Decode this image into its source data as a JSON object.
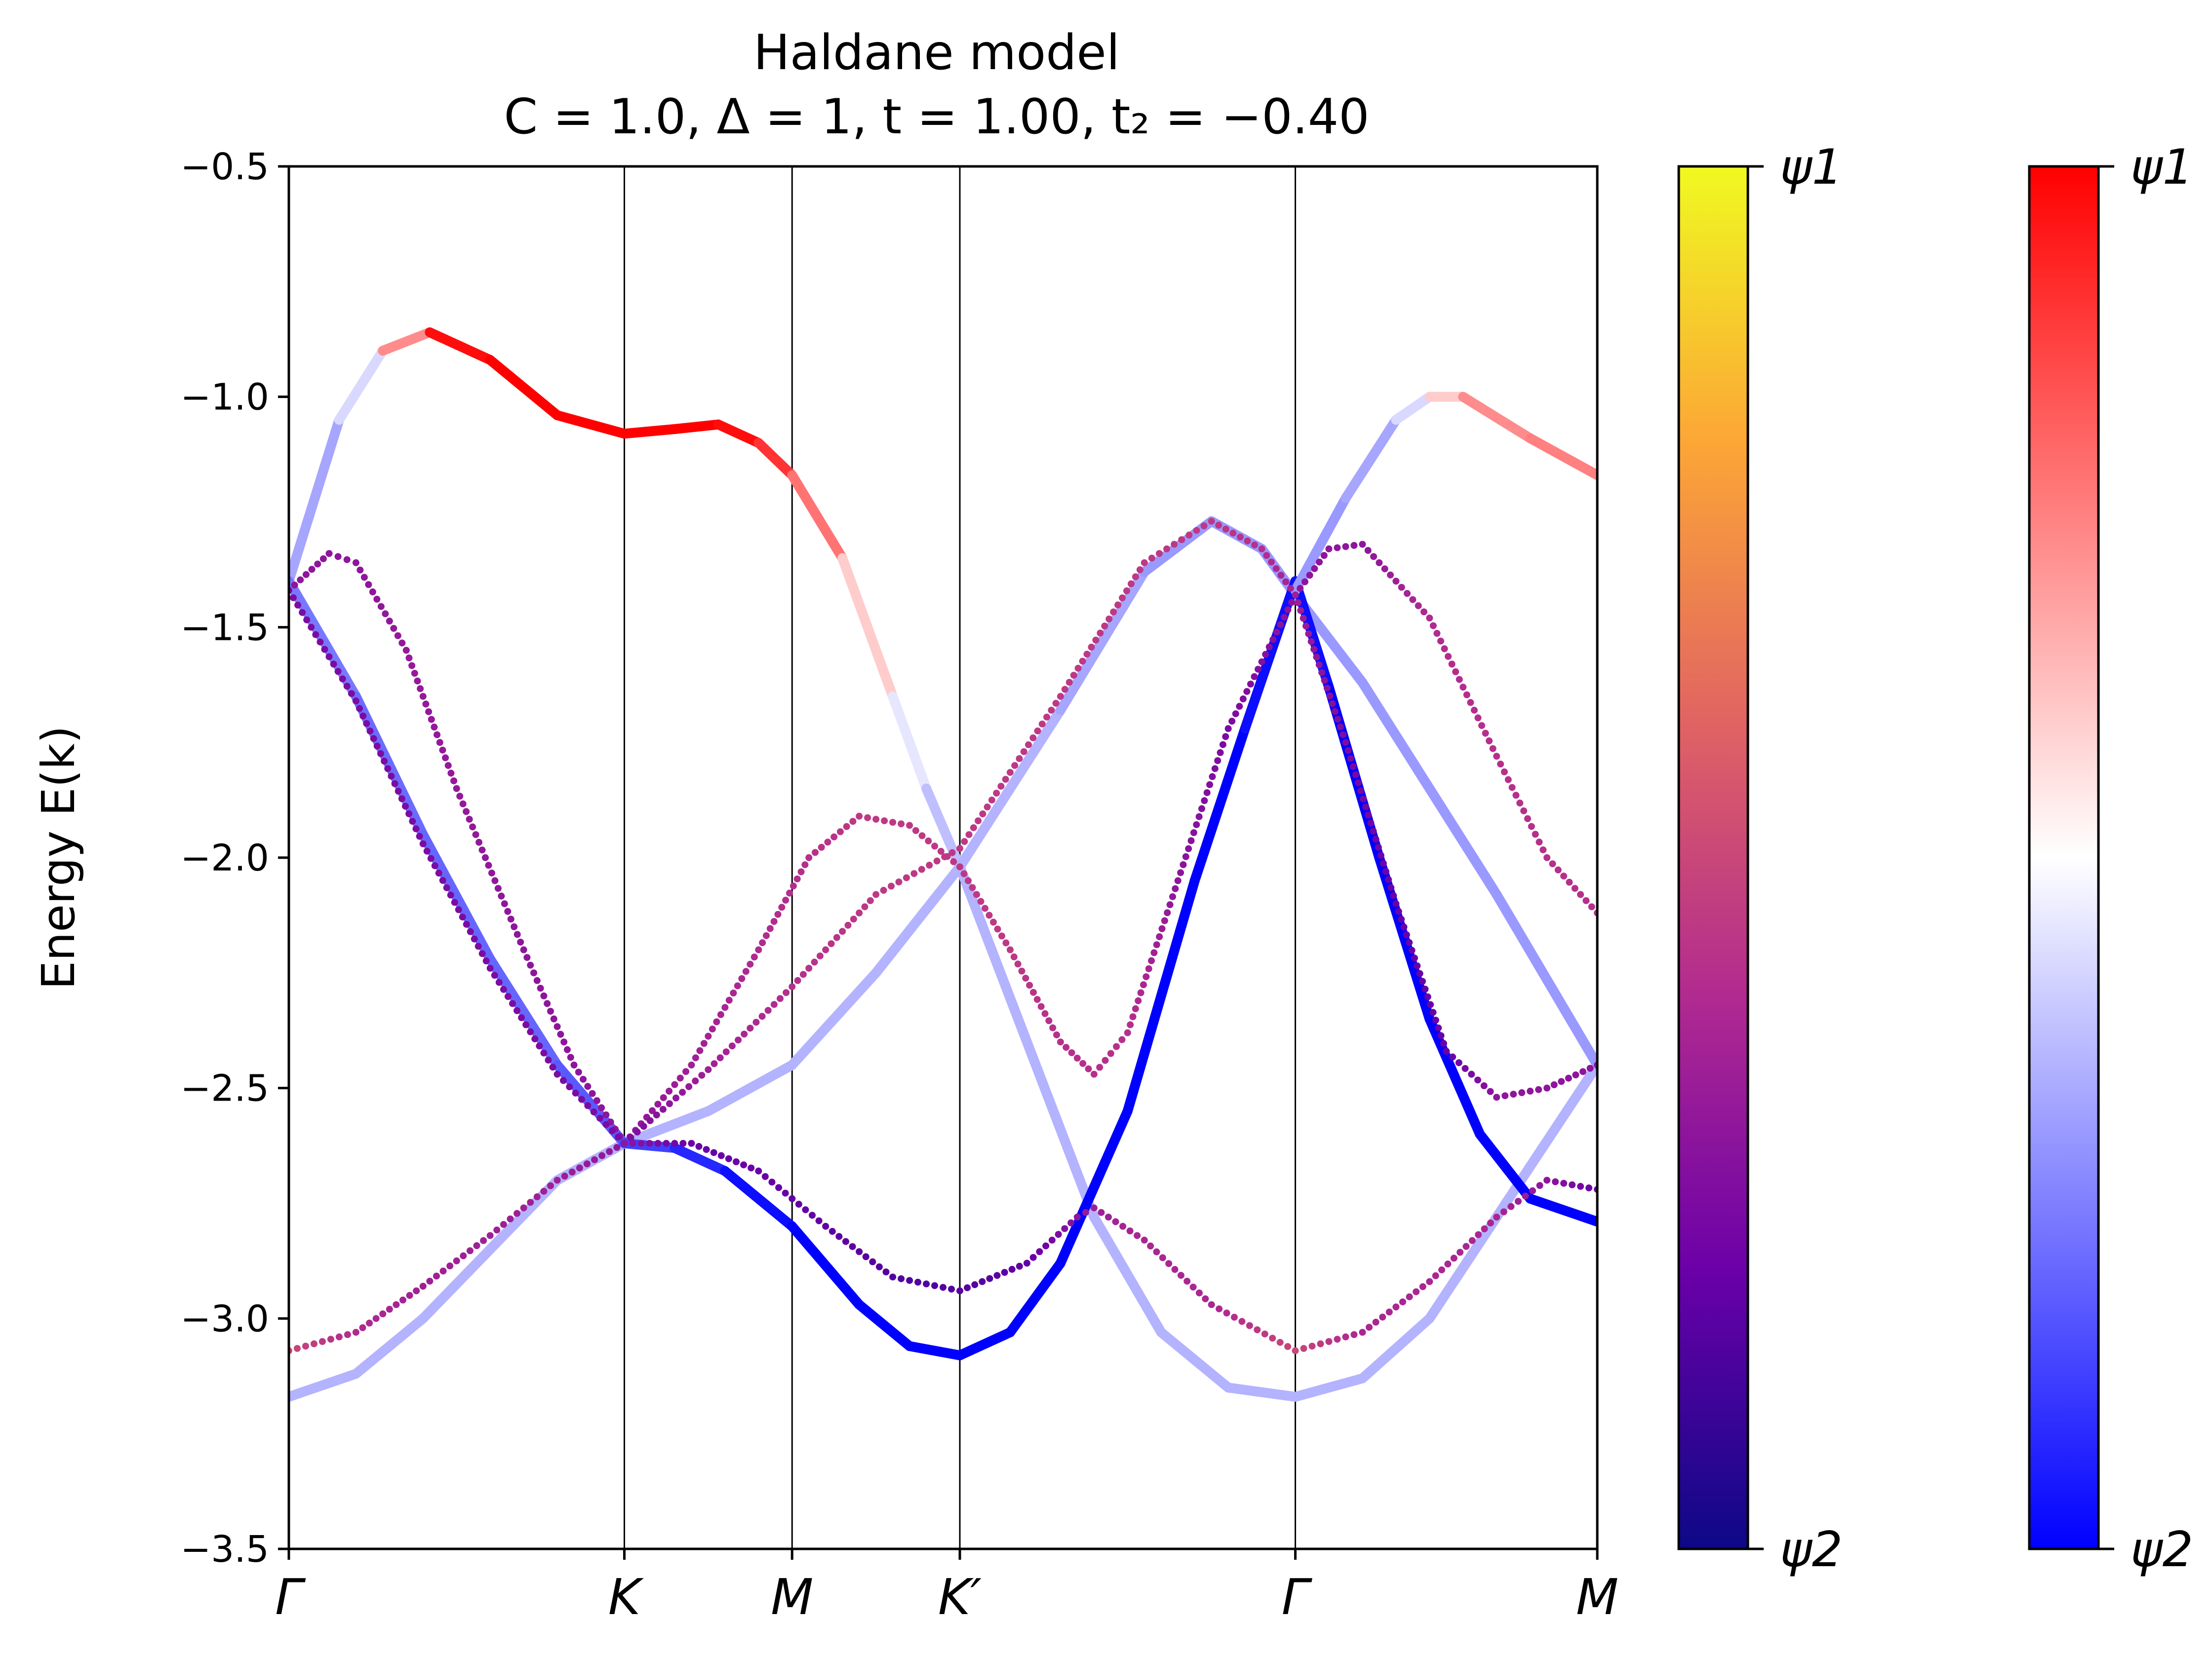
{
  "chart_data": {
    "type": "line",
    "title": "Haldane model",
    "subtitle": "C = 1.0, Δ = 1, t = 1.00, t₂ = −0.40",
    "ylabel": "Energy E(k)",
    "xlabel": "",
    "ylim": [
      -3.5,
      -0.5
    ],
    "xlim": [
      0,
      3.9
    ],
    "y_ticks": [
      -3.5,
      -3.0,
      -2.5,
      -2.0,
      -1.5,
      -1.0,
      -0.5
    ],
    "y_tick_labels": [
      "−3.5",
      "−3.0",
      "−2.5",
      "−2.0",
      "−1.5",
      "−1.0",
      "−0.5"
    ],
    "k_path_ticks": [
      {
        "label": "Γ",
        "x": 0.0
      },
      {
        "label": "K",
        "x": 1.0
      },
      {
        "label": "M",
        "x": 1.5
      },
      {
        "label": "K′",
        "x": 2.0
      },
      {
        "label": "Γ",
        "x": 3.0
      },
      {
        "label": "M",
        "x": 3.9
      }
    ],
    "grid": false,
    "colorbars": [
      {
        "name": "plasma",
        "top_label": "ψ1",
        "bottom_label": "ψ2",
        "colors": [
          "#0d0887",
          "#6a00a8",
          "#b12a90",
          "#e16462",
          "#fca636",
          "#f0f921"
        ]
      },
      {
        "name": "bwr",
        "top_label": "ψ1",
        "bottom_label": "ψ2",
        "colors": [
          "#0000ff",
          "#ffffff",
          "#ff0000"
        ]
      }
    ],
    "series": [
      {
        "style": "solid",
        "colormap": "bwr",
        "points": [
          {
            "x": 0.0,
            "y": -1.4,
            "c": 0.3
          },
          {
            "x": 0.15,
            "y": -1.05,
            "c": 0.35
          },
          {
            "x": 0.28,
            "y": -0.9,
            "c": 0.5
          },
          {
            "x": 0.42,
            "y": -0.86,
            "c": 0.95
          },
          {
            "x": 0.6,
            "y": -0.92,
            "c": 1.0
          },
          {
            "x": 0.8,
            "y": -1.04,
            "c": 1.0
          },
          {
            "x": 1.0,
            "y": -1.08,
            "c": 1.0
          },
          {
            "x": 1.15,
            "y": -1.07,
            "c": 1.0
          },
          {
            "x": 1.28,
            "y": -1.06,
            "c": 1.0
          },
          {
            "x": 1.4,
            "y": -1.1,
            "c": 0.95
          },
          {
            "x": 1.5,
            "y": -1.17,
            "c": 0.85
          },
          {
            "x": 1.65,
            "y": -1.35,
            "c": 0.7
          },
          {
            "x": 1.8,
            "y": -1.65,
            "c": 0.5
          },
          {
            "x": 1.9,
            "y": -1.85,
            "c": 0.4
          },
          {
            "x": 2.0,
            "y": -2.02,
            "c": 0.35
          },
          {
            "x": 2.2,
            "y": -2.4,
            "c": 0.35
          },
          {
            "x": 2.4,
            "y": -2.78,
            "c": 0.35
          },
          {
            "x": 2.6,
            "y": -3.03,
            "c": 0.35
          },
          {
            "x": 2.8,
            "y": -3.15,
            "c": 0.35
          },
          {
            "x": 3.0,
            "y": -3.17,
            "c": 0.35
          },
          {
            "x": 3.2,
            "y": -3.13,
            "c": 0.35
          },
          {
            "x": 3.4,
            "y": -3.0,
            "c": 0.35
          },
          {
            "x": 3.6,
            "y": -2.78,
            "c": 0.35
          },
          {
            "x": 3.9,
            "y": -2.45,
            "c": 0.35
          }
        ]
      },
      {
        "style": "solid",
        "colormap": "bwr",
        "points": [
          {
            "x": 0.0,
            "y": -3.17,
            "c": 0.35
          },
          {
            "x": 0.2,
            "y": -3.12,
            "c": 0.35
          },
          {
            "x": 0.4,
            "y": -3.0,
            "c": 0.35
          },
          {
            "x": 0.6,
            "y": -2.85,
            "c": 0.35
          },
          {
            "x": 0.8,
            "y": -2.7,
            "c": 0.35
          },
          {
            "x": 1.0,
            "y": -2.62,
            "c": 0.35
          },
          {
            "x": 1.25,
            "y": -2.55,
            "c": 0.35
          },
          {
            "x": 1.5,
            "y": -2.45,
            "c": 0.35
          },
          {
            "x": 1.75,
            "y": -2.25,
            "c": 0.35
          },
          {
            "x": 2.0,
            "y": -2.02,
            "c": 0.35
          },
          {
            "x": 2.3,
            "y": -1.68,
            "c": 0.35
          },
          {
            "x": 2.55,
            "y": -1.38,
            "c": 0.3
          },
          {
            "x": 2.75,
            "y": -1.27,
            "c": 0.3
          },
          {
            "x": 2.9,
            "y": -1.33,
            "c": 0.3
          },
          {
            "x": 3.0,
            "y": -1.43,
            "c": 0.3
          },
          {
            "x": 3.2,
            "y": -1.62,
            "c": 0.3
          },
          {
            "x": 3.4,
            "y": -1.85,
            "c": 0.3
          },
          {
            "x": 3.6,
            "y": -2.08,
            "c": 0.3
          },
          {
            "x": 3.9,
            "y": -2.45,
            "c": 0.3
          }
        ]
      },
      {
        "style": "solid",
        "colormap": "bwr",
        "points": [
          {
            "x": 0.0,
            "y": -1.4,
            "c": 0.25
          },
          {
            "x": 0.2,
            "y": -1.65,
            "c": 0.22
          },
          {
            "x": 0.4,
            "y": -1.95,
            "c": 0.2
          },
          {
            "x": 0.6,
            "y": -2.22,
            "c": 0.2
          },
          {
            "x": 0.8,
            "y": -2.45,
            "c": 0.2
          },
          {
            "x": 1.0,
            "y": -2.62,
            "c": 0.15
          },
          {
            "x": 1.15,
            "y": -2.63,
            "c": 0.1
          },
          {
            "x": 1.3,
            "y": -2.68,
            "c": 0.05
          },
          {
            "x": 1.5,
            "y": -2.8,
            "c": 0.0
          },
          {
            "x": 1.7,
            "y": -2.97,
            "c": 0.0
          },
          {
            "x": 1.85,
            "y": -3.06,
            "c": 0.0
          },
          {
            "x": 2.0,
            "y": -3.08,
            "c": 0.0
          },
          {
            "x": 2.15,
            "y": -3.03,
            "c": 0.0
          },
          {
            "x": 2.3,
            "y": -2.88,
            "c": 0.0
          },
          {
            "x": 2.5,
            "y": -2.55,
            "c": 0.0
          },
          {
            "x": 2.7,
            "y": -2.05,
            "c": 0.0
          },
          {
            "x": 2.85,
            "y": -1.72,
            "c": 0.0
          },
          {
            "x": 3.0,
            "y": -1.4,
            "c": 0.05
          },
          {
            "x": 3.1,
            "y": -1.63,
            "c": 0.0
          },
          {
            "x": 3.25,
            "y": -2.0,
            "c": 0.0
          },
          {
            "x": 3.4,
            "y": -2.35,
            "c": 0.0
          },
          {
            "x": 3.55,
            "y": -2.6,
            "c": 0.0
          },
          {
            "x": 3.7,
            "y": -2.74,
            "c": 0.0
          },
          {
            "x": 3.9,
            "y": -2.79,
            "c": 0.0
          }
        ]
      },
      {
        "style": "solid",
        "colormap": "bwr",
        "points": [
          {
            "x": 3.0,
            "y": -1.42,
            "c": 0.3
          },
          {
            "x": 3.15,
            "y": -1.22,
            "c": 0.3
          },
          {
            "x": 3.3,
            "y": -1.05,
            "c": 0.35
          },
          {
            "x": 3.4,
            "y": -1.0,
            "c": 0.5
          },
          {
            "x": 3.5,
            "y": -1.0,
            "c": 0.7
          },
          {
            "x": 3.7,
            "y": -1.09,
            "c": 0.75
          },
          {
            "x": 3.9,
            "y": -1.17,
            "c": 0.75
          }
        ]
      },
      {
        "style": "dotted",
        "colormap": "plasma",
        "points": [
          {
            "x": 0.0,
            "y": -1.42,
            "c": 0.3
          },
          {
            "x": 0.12,
            "y": -1.34,
            "c": 0.3
          },
          {
            "x": 0.2,
            "y": -1.36,
            "c": 0.3
          },
          {
            "x": 0.35,
            "y": -1.55,
            "c": 0.32
          },
          {
            "x": 0.5,
            "y": -1.85,
            "c": 0.32
          },
          {
            "x": 0.7,
            "y": -2.2,
            "c": 0.3
          },
          {
            "x": 0.85,
            "y": -2.45,
            "c": 0.3
          },
          {
            "x": 1.0,
            "y": -2.62,
            "c": 0.3
          },
          {
            "x": 1.2,
            "y": -2.45,
            "c": 0.35
          },
          {
            "x": 1.4,
            "y": -2.2,
            "c": 0.4
          },
          {
            "x": 1.55,
            "y": -2.0,
            "c": 0.42
          },
          {
            "x": 1.7,
            "y": -1.91,
            "c": 0.45
          },
          {
            "x": 1.85,
            "y": -1.93,
            "c": 0.45
          },
          {
            "x": 2.0,
            "y": -2.02,
            "c": 0.45
          },
          {
            "x": 2.15,
            "y": -2.2,
            "c": 0.45
          },
          {
            "x": 2.3,
            "y": -2.4,
            "c": 0.42
          },
          {
            "x": 2.4,
            "y": -2.47,
            "c": 0.42
          },
          {
            "x": 2.5,
            "y": -2.38,
            "c": 0.42
          },
          {
            "x": 2.65,
            "y": -2.05,
            "c": 0.3
          },
          {
            "x": 2.8,
            "y": -1.72,
            "c": 0.25
          },
          {
            "x": 3.0,
            "y": -1.43,
            "c": 0.3
          },
          {
            "x": 3.1,
            "y": -1.33,
            "c": 0.3
          },
          {
            "x": 3.2,
            "y": -1.32,
            "c": 0.3
          },
          {
            "x": 3.4,
            "y": -1.48,
            "c": 0.4
          },
          {
            "x": 3.6,
            "y": -1.78,
            "c": 0.42
          },
          {
            "x": 3.75,
            "y": -2.0,
            "c": 0.42
          },
          {
            "x": 3.9,
            "y": -2.12,
            "c": 0.42
          }
        ]
      },
      {
        "style": "dotted",
        "colormap": "plasma",
        "points": [
          {
            "x": 0.0,
            "y": -1.42,
            "c": 0.25
          },
          {
            "x": 0.2,
            "y": -1.66,
            "c": 0.25
          },
          {
            "x": 0.4,
            "y": -1.97,
            "c": 0.25
          },
          {
            "x": 0.6,
            "y": -2.24,
            "c": 0.25
          },
          {
            "x": 0.8,
            "y": -2.47,
            "c": 0.25
          },
          {
            "x": 1.0,
            "y": -2.62,
            "c": 0.25
          },
          {
            "x": 1.25,
            "y": -2.46,
            "c": 0.35
          },
          {
            "x": 1.5,
            "y": -2.28,
            "c": 0.42
          },
          {
            "x": 1.75,
            "y": -2.08,
            "c": 0.45
          },
          {
            "x": 2.0,
            "y": -1.98,
            "c": 0.45
          },
          {
            "x": 2.3,
            "y": -1.65,
            "c": 0.45
          },
          {
            "x": 2.55,
            "y": -1.36,
            "c": 0.45
          },
          {
            "x": 2.75,
            "y": -1.27,
            "c": 0.45
          },
          {
            "x": 2.9,
            "y": -1.33,
            "c": 0.42
          },
          {
            "x": 3.0,
            "y": -1.43,
            "c": 0.35
          },
          {
            "x": 3.15,
            "y": -1.75,
            "c": 0.25
          },
          {
            "x": 3.3,
            "y": -2.1,
            "c": 0.2
          },
          {
            "x": 3.45,
            "y": -2.42,
            "c": 0.2
          },
          {
            "x": 3.6,
            "y": -2.52,
            "c": 0.3
          },
          {
            "x": 3.75,
            "y": -2.5,
            "c": 0.3
          },
          {
            "x": 3.9,
            "y": -2.45,
            "c": 0.3
          }
        ]
      },
      {
        "style": "dotted",
        "colormap": "plasma",
        "points": [
          {
            "x": 0.0,
            "y": -3.07,
            "c": 0.5
          },
          {
            "x": 0.2,
            "y": -3.03,
            "c": 0.4
          },
          {
            "x": 0.4,
            "y": -2.93,
            "c": 0.35
          },
          {
            "x": 0.6,
            "y": -2.82,
            "c": 0.35
          },
          {
            "x": 0.8,
            "y": -2.7,
            "c": 0.35
          },
          {
            "x": 1.0,
            "y": -2.62,
            "c": 0.3
          },
          {
            "x": 1.2,
            "y": -2.62,
            "c": 0.2
          },
          {
            "x": 1.4,
            "y": -2.68,
            "c": 0.2
          },
          {
            "x": 1.6,
            "y": -2.8,
            "c": 0.18
          },
          {
            "x": 1.8,
            "y": -2.91,
            "c": 0.15
          },
          {
            "x": 2.0,
            "y": -2.94,
            "c": 0.15
          },
          {
            "x": 2.2,
            "y": -2.88,
            "c": 0.18
          },
          {
            "x": 2.35,
            "y": -2.78,
            "c": 0.3
          },
          {
            "x": 2.4,
            "y": -2.76,
            "c": 0.35
          },
          {
            "x": 2.55,
            "y": -2.83,
            "c": 0.38
          },
          {
            "x": 2.75,
            "y": -2.97,
            "c": 0.38
          },
          {
            "x": 3.0,
            "y": -3.07,
            "c": 0.5
          },
          {
            "x": 3.2,
            "y": -3.03,
            "c": 0.38
          },
          {
            "x": 3.4,
            "y": -2.92,
            "c": 0.38
          },
          {
            "x": 3.6,
            "y": -2.78,
            "c": 0.38
          },
          {
            "x": 3.75,
            "y": -2.7,
            "c": 0.3
          },
          {
            "x": 3.9,
            "y": -2.72,
            "c": 0.2
          }
        ]
      }
    ]
  }
}
